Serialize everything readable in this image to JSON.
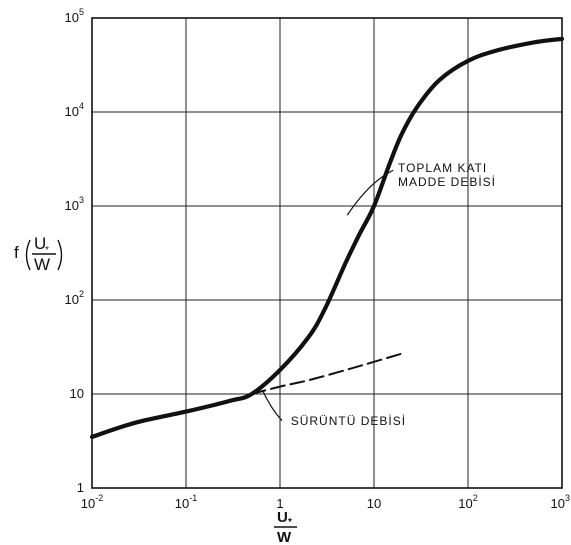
{
  "chart_data": {
    "type": "line",
    "xscale": "log",
    "yscale": "log",
    "xlim": [
      0.01,
      1000
    ],
    "ylim": [
      1,
      100000
    ],
    "grid": true,
    "xlabel": {
      "num": "U",
      "sub": "*",
      "den": "W"
    },
    "ylabel": {
      "prefix": "f",
      "num": "U",
      "sub": "*",
      "den": "W"
    },
    "x_ticks": [
      {
        "value": 0.01,
        "base": "10",
        "exp": "-2"
      },
      {
        "value": 0.1,
        "base": "10",
        "exp": "-1"
      },
      {
        "value": 1,
        "base": "1",
        "exp": ""
      },
      {
        "value": 10,
        "base": "10",
        "exp": ""
      },
      {
        "value": 100,
        "base": "10",
        "exp": "2"
      },
      {
        "value": 1000,
        "base": "10",
        "exp": "3"
      }
    ],
    "y_ticks": [
      {
        "value": 1,
        "base": "1",
        "exp": ""
      },
      {
        "value": 10,
        "base": "10",
        "exp": ""
      },
      {
        "value": 100,
        "base": "10",
        "exp": "2"
      },
      {
        "value": 1000,
        "base": "10",
        "exp": "3"
      },
      {
        "value": 10000,
        "base": "10",
        "exp": "4"
      },
      {
        "value": 100000,
        "base": "10",
        "exp": "5"
      }
    ],
    "series": [
      {
        "name": "TOPLAM KATI MADDE DEBİSİ",
        "style": "solid",
        "x": [
          0.01,
          0.03,
          0.1,
          0.3,
          0.5,
          1,
          2,
          3,
          5,
          7,
          10,
          15,
          20,
          30,
          50,
          100,
          200,
          500,
          1000
        ],
        "y": [
          3.5,
          5,
          6.5,
          8.5,
          10,
          18,
          40,
          80,
          250,
          500,
          1000,
          3000,
          6000,
          12000,
          22000,
          35000,
          45000,
          55000,
          60000
        ]
      },
      {
        "name": "SÜRÜNTÜ DEBİSİ",
        "style": "dashed",
        "x": [
          0.5,
          1,
          2,
          5,
          10,
          20
        ],
        "y": [
          10,
          12,
          14,
          18,
          22,
          27
        ]
      }
    ],
    "annotations": [
      {
        "lines": [
          "TOPLAM KATI",
          "MADDE DEBİSİ"
        ],
        "series": "TOPLAM KATI MADDE DEBİSİ"
      },
      {
        "lines": [
          "SÜRÜNTÜ  DEBİSİ"
        ],
        "series": "SÜRÜNTÜ DEBİSİ"
      }
    ]
  }
}
